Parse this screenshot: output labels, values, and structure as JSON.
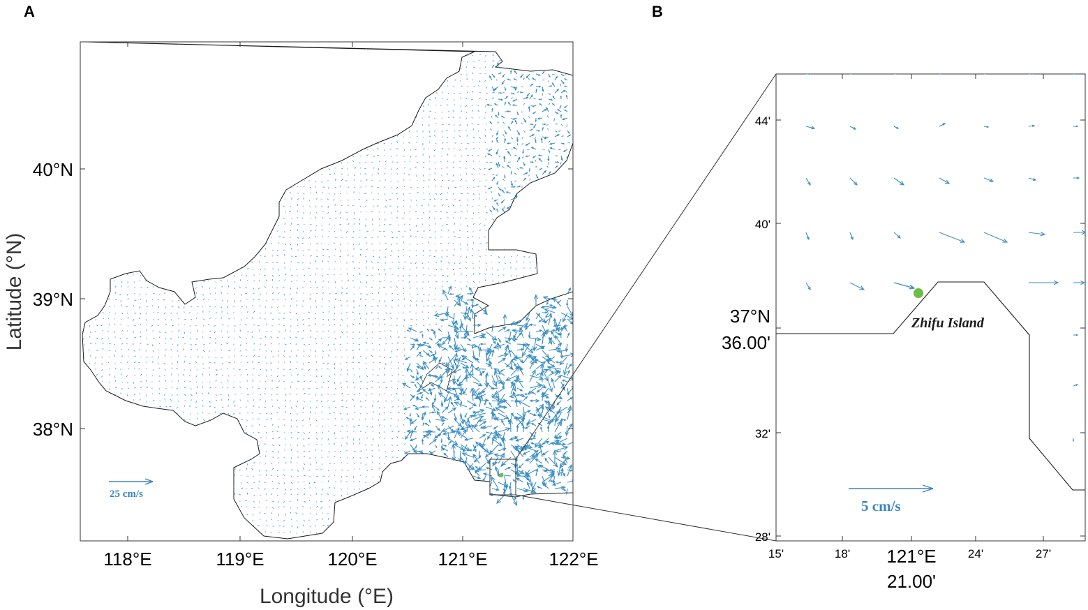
{
  "panels": [
    {
      "label": "A",
      "xlabel": "Longitude (°E)",
      "ylabel": "Latitude (°N)",
      "x_ticks": [
        "118°E",
        "119°E",
        "120°E",
        "121°E",
        "122°E"
      ],
      "y_ticks": [
        "38°N",
        "39°N",
        "40°N"
      ],
      "scale_label": "25 cm/s",
      "xlim": [
        117.6,
        122.0
      ],
      "ylim": [
        37.15,
        41.0
      ]
    },
    {
      "label": "B",
      "x_ticks": [
        "15'",
        "18'",
        "121°E",
        "24'",
        "27'"
      ],
      "x_extra": "21.00'",
      "y_ticks": [
        "28'",
        "32'",
        "36.00'",
        "40'",
        "44'"
      ],
      "y_extra": "37°N",
      "island_label": "Zhifu Island",
      "scale_label": "5 cm/s"
    }
  ],
  "colors": {
    "vector": "#3b8ec4",
    "vector_label": "#3a86c6",
    "coastline": "#1a1a1a",
    "station": "#6cbd45"
  }
}
